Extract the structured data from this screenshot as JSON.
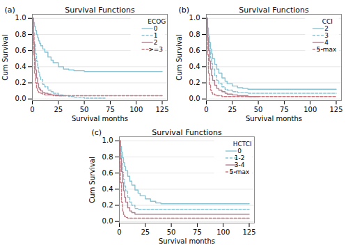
{
  "chart_data": [
    {
      "type": "step",
      "title": "Survival Functions",
      "x_label": "Survival months",
      "y_label": "Cum Survival",
      "annotation": "(a)",
      "legend_title": "ECOG",
      "legend": "upper right",
      "grid": true,
      "xlim": [
        0,
        130
      ],
      "ylim": [
        -0.02,
        1.05
      ],
      "xticks": [
        0,
        25,
        50,
        75,
        100,
        125
      ],
      "yticks": [
        {
          "value": 0.0,
          "label": "0.0"
        },
        0.2,
        0.4,
        0.6,
        0.8,
        {
          "value": 1.0,
          "label": "1.0"
        }
      ],
      "series": [
        {
          "name": "0",
          "color": "#88c4d4",
          "line_style": "solid",
          "x": [
            0,
            1,
            2,
            3,
            4,
            5,
            6,
            7,
            8,
            10,
            12,
            15,
            18,
            20,
            25,
            30,
            35,
            40,
            50,
            60,
            70,
            80,
            100,
            125
          ],
          "values": [
            1.0,
            0.95,
            0.9,
            0.85,
            0.8,
            0.76,
            0.72,
            0.69,
            0.66,
            0.62,
            0.58,
            0.52,
            0.48,
            0.45,
            0.4,
            0.37,
            0.36,
            0.35,
            0.34,
            0.34,
            0.34,
            0.34,
            0.34,
            0.34
          ]
        },
        {
          "name": "1",
          "color": "#88c4d4",
          "line_style": "dashed",
          "x": [
            0,
            1,
            2,
            3,
            4,
            5,
            6,
            7,
            8,
            10,
            12,
            15,
            18,
            20,
            25,
            30,
            35,
            40,
            50,
            60,
            70
          ],
          "values": [
            1.0,
            0.82,
            0.68,
            0.56,
            0.47,
            0.39,
            0.33,
            0.28,
            0.24,
            0.18,
            0.15,
            0.11,
            0.09,
            0.07,
            0.05,
            0.04,
            0.03,
            0.02,
            0.01,
            0.01,
            0.01
          ]
        },
        {
          "name": "2",
          "color": "#b08090",
          "line_style": "solid",
          "x": [
            0,
            1,
            2,
            3,
            4,
            5,
            6,
            7,
            8,
            10,
            12,
            15,
            18,
            20,
            25,
            30
          ],
          "values": [
            1.0,
            0.7,
            0.5,
            0.36,
            0.26,
            0.19,
            0.14,
            0.12,
            0.1,
            0.08,
            0.07,
            0.06,
            0.05,
            0.05,
            0.04,
            0.04
          ]
        },
        {
          "name": ">=3",
          "color": "#c87880",
          "line_style": "dashed",
          "x": [
            0,
            0.5,
            1,
            2,
            3,
            4,
            5,
            6,
            8,
            10,
            12,
            15,
            20,
            25,
            30,
            50,
            100,
            125
          ],
          "values": [
            1.0,
            0.8,
            0.55,
            0.32,
            0.2,
            0.13,
            0.1,
            0.08,
            0.07,
            0.06,
            0.05,
            0.05,
            0.04,
            0.04,
            0.04,
            0.04,
            0.04,
            0.04
          ]
        }
      ]
    },
    {
      "type": "step",
      "title": "Survival Functions",
      "x_label": "Survival months",
      "y_label": "Cum Survival",
      "annotation": "(b)",
      "legend_title": "CCI",
      "legend": "upper right",
      "grid": true,
      "xlim": [
        0,
        130
      ],
      "ylim": [
        -0.02,
        1.05
      ],
      "xticks": [
        0,
        25,
        50,
        75,
        100,
        125
      ],
      "yticks": [
        {
          "value": 0.0,
          "label": "0.0"
        },
        0.2,
        0.4,
        0.6,
        0.8,
        {
          "value": 1.0,
          "label": "1.0"
        }
      ],
      "series": [
        {
          "name": "2",
          "color": "#88c4d4",
          "line_style": "solid",
          "x": [
            0,
            1,
            2,
            3,
            4,
            5,
            6,
            8,
            10,
            12,
            15,
            18,
            20,
            25,
            30,
            35,
            40,
            50,
            60,
            75,
            100,
            125
          ],
          "values": [
            1.0,
            0.88,
            0.78,
            0.7,
            0.62,
            0.56,
            0.5,
            0.43,
            0.37,
            0.32,
            0.26,
            0.22,
            0.19,
            0.16,
            0.14,
            0.13,
            0.12,
            0.12,
            0.12,
            0.12,
            0.12,
            0.12
          ]
        },
        {
          "name": "3",
          "color": "#88c4d4",
          "line_style": "dashed",
          "x": [
            0,
            1,
            2,
            3,
            4,
            5,
            6,
            8,
            10,
            12,
            15,
            18,
            20,
            25,
            30,
            40,
            50,
            60,
            75,
            100,
            125
          ],
          "values": [
            1.0,
            0.82,
            0.7,
            0.6,
            0.51,
            0.44,
            0.37,
            0.29,
            0.23,
            0.19,
            0.15,
            0.12,
            0.11,
            0.09,
            0.08,
            0.07,
            0.07,
            0.07,
            0.07,
            0.07,
            0.07
          ]
        },
        {
          "name": "4",
          "color": "#b08090",
          "line_style": "solid",
          "x": [
            0,
            1,
            2,
            3,
            4,
            5,
            6,
            8,
            10,
            12,
            15,
            18,
            20,
            25,
            30,
            40,
            50
          ],
          "values": [
            1.0,
            0.76,
            0.6,
            0.47,
            0.37,
            0.29,
            0.23,
            0.17,
            0.13,
            0.11,
            0.09,
            0.07,
            0.06,
            0.05,
            0.04,
            0.03,
            0.03
          ]
        },
        {
          "name": "5-max",
          "color": "#c87880",
          "line_style": "dashed",
          "x": [
            0,
            0.5,
            1,
            2,
            3,
            4,
            5,
            6,
            8,
            10,
            15,
            20,
            25,
            30,
            50,
            100,
            125
          ],
          "values": [
            1.0,
            0.78,
            0.55,
            0.32,
            0.18,
            0.11,
            0.08,
            0.06,
            0.05,
            0.04,
            0.03,
            0.03,
            0.03,
            0.03,
            0.03,
            0.03,
            0.03
          ]
        }
      ]
    },
    {
      "type": "step",
      "title": "Survival Functions",
      "x_label": "Survival months",
      "y_label": "Cum Survival",
      "annotation": "(c)",
      "legend_title": "HCTCI",
      "legend": "upper right",
      "grid": true,
      "xlim": [
        0,
        130
      ],
      "ylim": [
        -0.02,
        1.05
      ],
      "xticks": [
        0,
        25,
        50,
        75,
        100,
        125
      ],
      "yticks": [
        {
          "value": 0.0,
          "label": "0.0"
        },
        0.2,
        0.4,
        0.6,
        0.8,
        {
          "value": 1.0,
          "label": "1.0"
        }
      ],
      "series": [
        {
          "name": "0",
          "color": "#88c4d4",
          "line_style": "solid",
          "x": [
            0,
            1,
            2,
            3,
            4,
            5,
            6,
            8,
            10,
            12,
            15,
            18,
            20,
            25,
            30,
            35,
            40,
            50,
            60,
            75,
            100,
            125
          ],
          "values": [
            1.0,
            0.93,
            0.86,
            0.79,
            0.73,
            0.68,
            0.63,
            0.56,
            0.5,
            0.45,
            0.39,
            0.35,
            0.32,
            0.28,
            0.25,
            0.23,
            0.22,
            0.22,
            0.22,
            0.22,
            0.22,
            0.22
          ]
        },
        {
          "name": "1-2",
          "color": "#88c4d4",
          "line_style": "dashed",
          "x": [
            0,
            1,
            2,
            3,
            4,
            5,
            6,
            8,
            10,
            12,
            15,
            18,
            20,
            25,
            30,
            35,
            40,
            50,
            60,
            75,
            100,
            125
          ],
          "values": [
            1.0,
            0.84,
            0.72,
            0.61,
            0.52,
            0.44,
            0.38,
            0.3,
            0.24,
            0.2,
            0.16,
            0.15,
            0.15,
            0.15,
            0.15,
            0.15,
            0.15,
            0.15,
            0.15,
            0.15,
            0.15,
            0.15
          ]
        },
        {
          "name": "3-4",
          "color": "#b08090",
          "line_style": "solid",
          "x": [
            0,
            1,
            2,
            3,
            4,
            5,
            6,
            8,
            10,
            12,
            15,
            18,
            20,
            25,
            30,
            40,
            50,
            60,
            75,
            100,
            125
          ],
          "values": [
            1.0,
            0.78,
            0.62,
            0.48,
            0.38,
            0.3,
            0.24,
            0.17,
            0.13,
            0.11,
            0.09,
            0.09,
            0.09,
            0.09,
            0.09,
            0.09,
            0.09,
            0.09,
            0.09,
            0.09,
            0.09
          ]
        },
        {
          "name": "5-max",
          "color": "#c87880",
          "line_style": "dashed",
          "x": [
            0,
            0.5,
            1,
            2,
            3,
            4,
            5,
            6,
            8,
            10,
            12,
            15,
            20,
            25,
            30,
            50,
            75,
            100,
            125
          ],
          "values": [
            1.0,
            0.72,
            0.48,
            0.24,
            0.13,
            0.08,
            0.06,
            0.05,
            0.04,
            0.04,
            0.04,
            0.04,
            0.04,
            0.04,
            0.04,
            0.04,
            0.04,
            0.04,
            0.04
          ]
        }
      ]
    }
  ]
}
